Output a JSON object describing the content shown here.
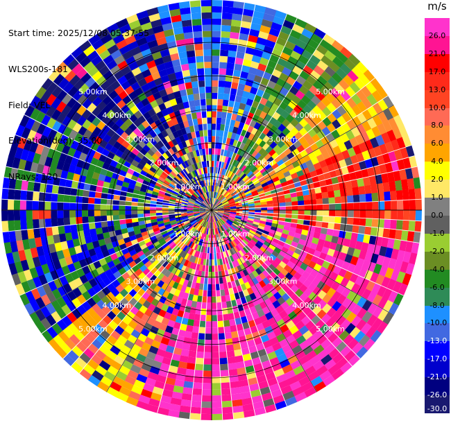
{
  "info": {
    "start_time": "Start time: 2025/12/08 05:37:55",
    "instrument": "WLS200s-181",
    "field": "Field: VEL",
    "elevation": "Elevation(deg): 35.00",
    "nrays": "NRays: 120"
  },
  "colorbar": {
    "unit": "m/s",
    "levels": [
      {
        "label": "26.0",
        "color": "#ff33cc"
      },
      {
        "label": "21.0",
        "color": "#ff1493"
      },
      {
        "label": "17.0",
        "color": "#ff0000"
      },
      {
        "label": "13.0",
        "color": "#ff2a1a"
      },
      {
        "label": "10.0",
        "color": "#ff4422"
      },
      {
        "label": "8.0",
        "color": "#ff6a55"
      },
      {
        "label": "6.0",
        "color": "#ff8c33"
      },
      {
        "label": "4.0",
        "color": "#ffa500"
      },
      {
        "label": "2.0",
        "color": "#ffff00"
      },
      {
        "label": "1.0",
        "color": "#ffe866"
      },
      {
        "label": "0.0",
        "color": "#808080"
      },
      {
        "label": "-1.0",
        "color": "#606060"
      },
      {
        "label": "-2.0",
        "color": "#9acd32"
      },
      {
        "label": "-4.0",
        "color": "#6b8e23"
      },
      {
        "label": "-6.0",
        "color": "#228b22"
      },
      {
        "label": "-8.0",
        "color": "#2e8b57"
      },
      {
        "label": "-10.0",
        "color": "#1e90ff"
      },
      {
        "label": "-13.0",
        "color": "#4169e1"
      },
      {
        "label": "-17.0",
        "color": "#0000ff"
      },
      {
        "label": "-21.0",
        "color": "#0000cd"
      },
      {
        "label": "-26.0",
        "color": "#000080"
      },
      {
        "label": "-30.0",
        "color": "#191970"
      }
    ]
  },
  "range_labels": [
    "1.00km",
    "2.00km",
    "3.00km",
    "4.00km",
    "5.00km"
  ]
}
